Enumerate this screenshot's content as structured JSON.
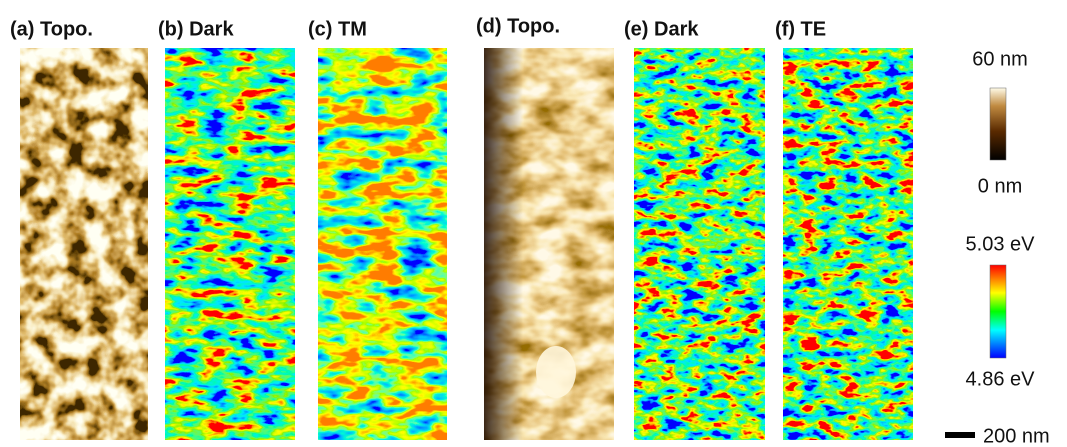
{
  "panels": [
    {
      "label": "(a) Topo."
    },
    {
      "label": "(b) Dark"
    },
    {
      "label": "(c) TM"
    },
    {
      "label": "(d) Topo."
    },
    {
      "label": "(e) Dark"
    },
    {
      "label": "(f) TE"
    }
  ],
  "colorbars": [
    {
      "max_label": "60 nm",
      "min_label": "0 nm"
    },
    {
      "max_label": "5.03 eV",
      "min_label": "4.86 eV"
    }
  ],
  "scale_bar": {
    "label": "200 nm"
  }
}
